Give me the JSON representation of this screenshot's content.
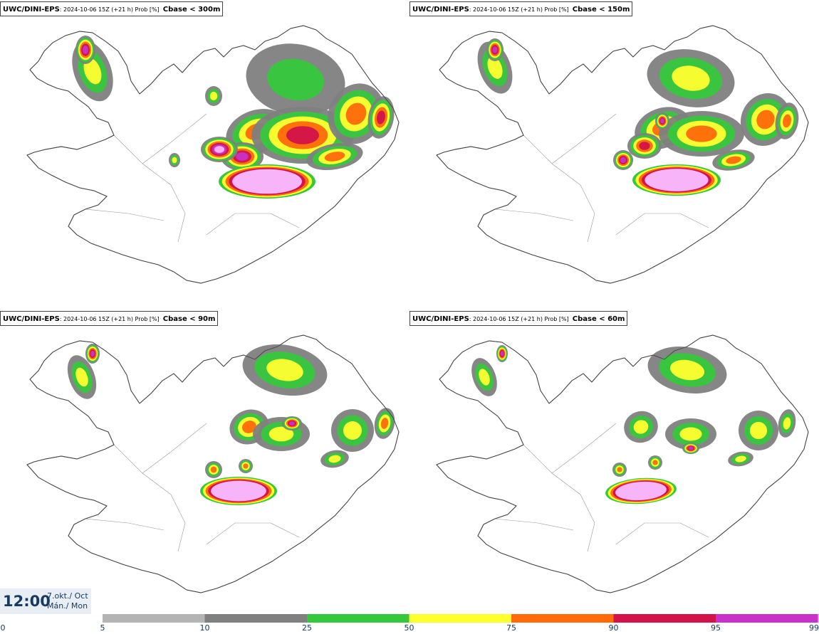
{
  "panels": [
    {
      "model": "UWC/DINI-EPS",
      "meta": ": 2024-10-06 15Z (+21 h) Prob [%]",
      "variable": "Cbase < 300m"
    },
    {
      "model": "UWC/DINI-EPS",
      "meta": ": 2024-10-06 15Z (+21 h) Prob [%]",
      "variable": "Cbase < 150m"
    },
    {
      "model": "UWC/DINI-EPS",
      "meta": ": 2024-10-06 15Z (+21 h) Prob [%]",
      "variable": "Cbase < 90m"
    },
    {
      "model": "UWC/DINI-EPS",
      "meta": ": 2024-10-06 15Z (+21 h) Prob [%]",
      "variable": "Cbase < 60m"
    }
  ],
  "valid_time": {
    "time": "12:00",
    "date_line1": "7.okt./ Oct",
    "date_line2": "Mán./ Mon"
  },
  "legend": {
    "labels": [
      "0",
      "5",
      "10",
      "25",
      "50",
      "75",
      "90",
      "95",
      "99"
    ],
    "colors": [
      "#b4b4b4",
      "#808080",
      "#36c83c",
      "#ffff2e",
      "#ff6a0a",
      "#d3124c",
      "#c832c8",
      "#f8b4f8"
    ]
  }
}
